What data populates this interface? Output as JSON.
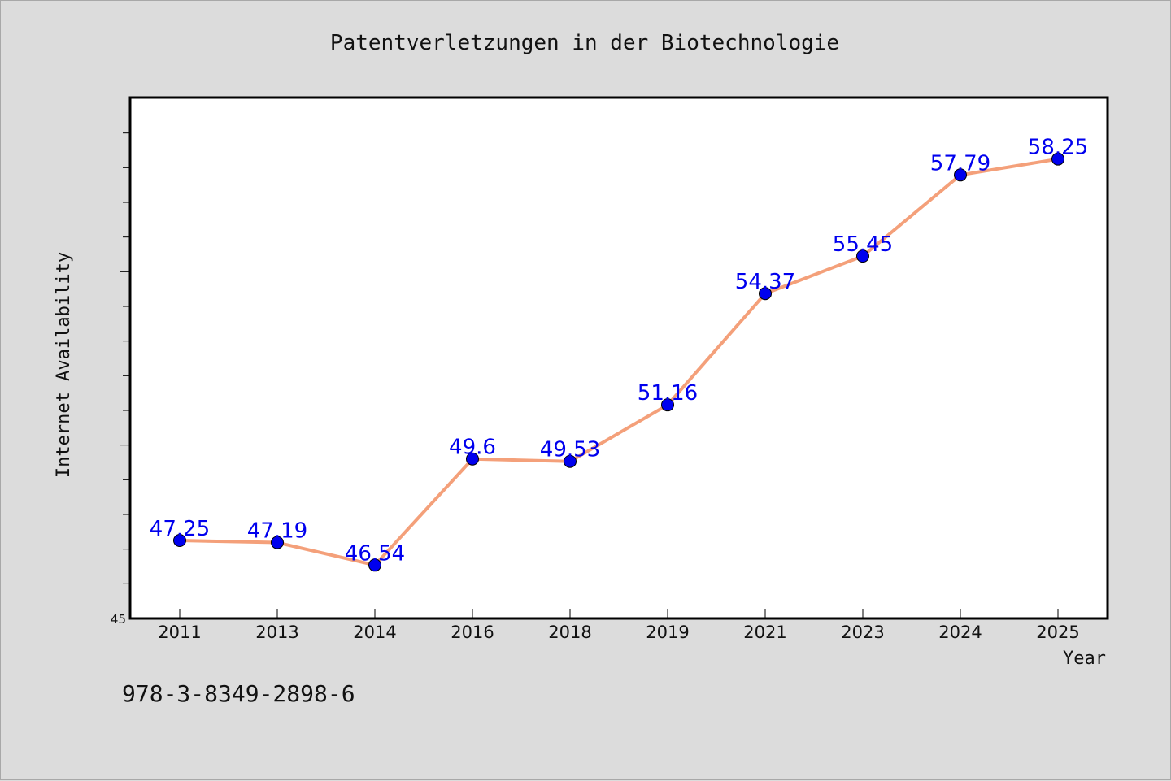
{
  "chart_data": {
    "type": "line",
    "title": "Patentverletzungen in der Biotechnologie",
    "xlabel": "Year",
    "ylabel": "Internet Availability",
    "categories": [
      "2011",
      "2013",
      "2014",
      "2016",
      "2018",
      "2019",
      "2021",
      "2023",
      "2024",
      "2025"
    ],
    "series": [
      {
        "values": [
          47.25,
          47.19,
          46.54,
          49.6,
          49.53,
          51.16,
          54.37,
          55.45,
          57.79,
          58.25
        ]
      }
    ],
    "data_labels": [
      "47.25",
      "47.19",
      "46.54",
      "49.6",
      "49.53",
      "51.16",
      "54.37",
      "55.45",
      "57.79",
      "58.25"
    ],
    "ylim": [
      45,
      60
    ],
    "y_ticks_labeled": [
      "45"
    ],
    "grid": false,
    "line_color": "#f4a07a",
    "marker_color": "#0000ee",
    "label_color": "#0000ee"
  },
  "footer": {
    "isbn": "978-3-8349-2898-6"
  }
}
